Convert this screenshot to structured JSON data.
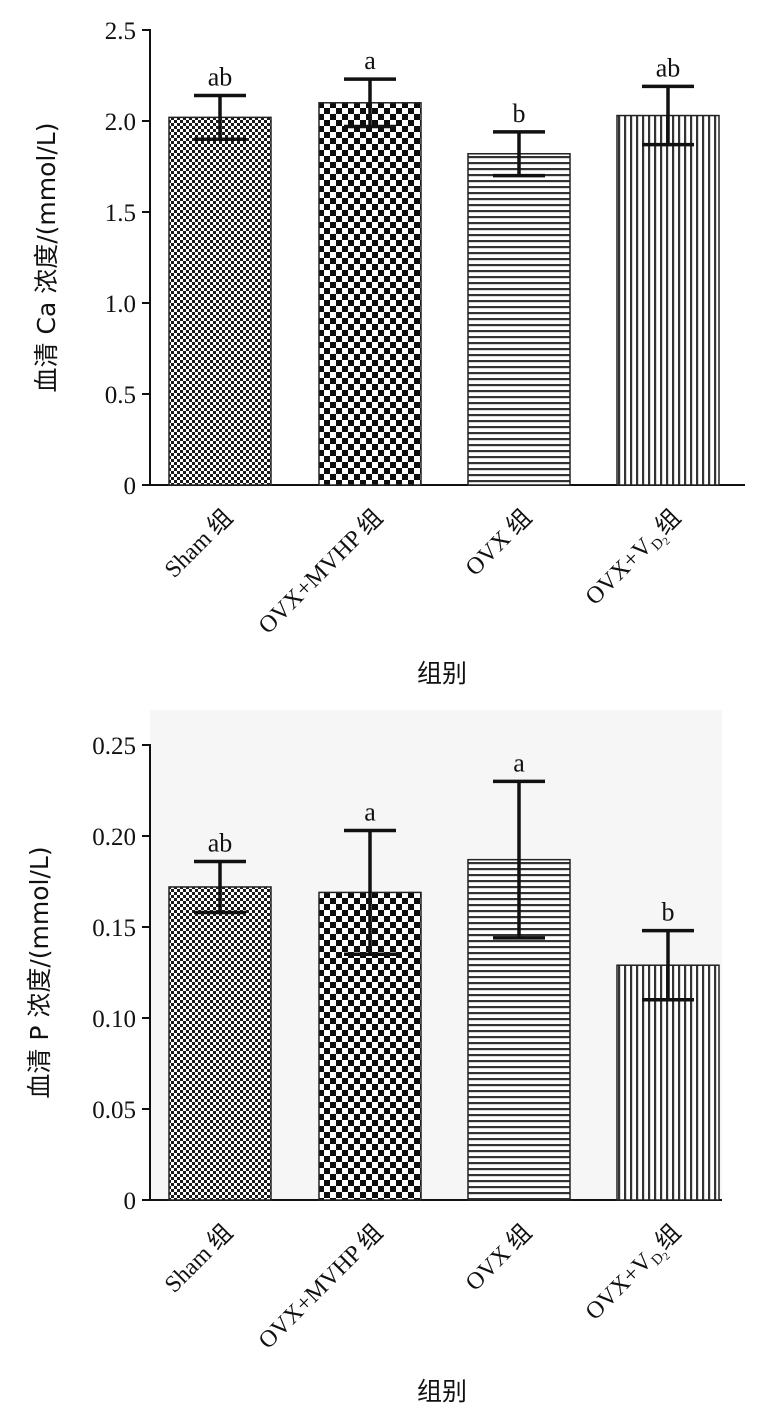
{
  "chart_data": [
    {
      "type": "bar",
      "categories": [
        "Sham 组",
        "OVX+MVHP 组",
        "OVX 组",
        "OVX+V_D2组"
      ],
      "series": [
        {
          "values": [
            2.02,
            2.1,
            1.82,
            2.03
          ],
          "errors": [
            0.12,
            0.13,
            0.12,
            0.16
          ],
          "significance": [
            "ab",
            "a",
            "b",
            "ab"
          ],
          "patterns": [
            "fine-check",
            "check",
            "horizontal",
            "vertical"
          ]
        }
      ],
      "ylim": [
        0,
        2.5
      ],
      "yticks": [
        0,
        0.5,
        1.0,
        1.5,
        2.0,
        2.5
      ],
      "ytick_labels": [
        "0",
        "0.5",
        "1.0",
        "1.5",
        "2.0",
        "2.5"
      ],
      "ylabel": "血清 Ca 浓度/(mmol/L)",
      "xlabel": "组别",
      "grid": false
    },
    {
      "type": "bar",
      "categories": [
        "Sham 组",
        "OVX+MVHP 组",
        "OVX 组",
        "OVX+V_D2组"
      ],
      "series": [
        {
          "values": [
            0.172,
            0.169,
            0.187,
            0.129
          ],
          "errors": [
            0.014,
            0.034,
            0.043,
            0.019
          ],
          "significance": [
            "ab",
            "a",
            "a",
            "b"
          ],
          "patterns": [
            "fine-check",
            "check",
            "horizontal",
            "vertical"
          ]
        }
      ],
      "ylim": [
        0,
        0.25
      ],
      "yticks": [
        0,
        0.05,
        0.1,
        0.15,
        0.2,
        0.25
      ],
      "ytick_labels": [
        "0",
        "0.05",
        "0.10",
        "0.15",
        "0.20",
        "0.25"
      ],
      "ylabel": "血清 P 浓度/(mmol/L)",
      "xlabel": "组别",
      "grid": false
    }
  ]
}
